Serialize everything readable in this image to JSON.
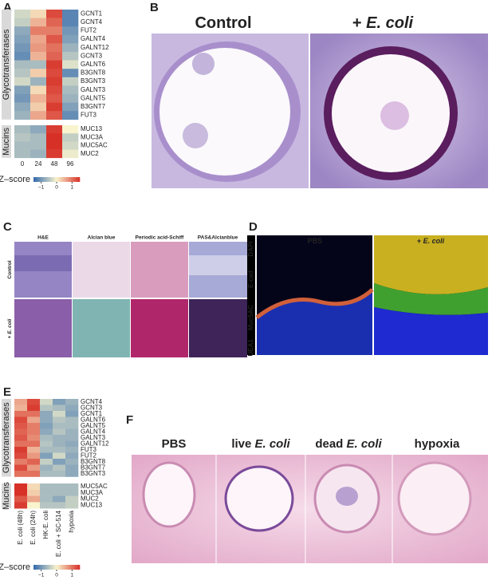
{
  "panels": {
    "A": {
      "label": "A",
      "columns": [
        "0",
        "24",
        "48",
        "96"
      ],
      "groups": [
        {
          "name": "Glycotransferases",
          "rows": [
            "GCNT1",
            "GCNT4",
            "FUT2",
            "GALNT4",
            "GALNT12",
            "GCNT3",
            "GALNT6",
            "B3GNT8",
            "B3GNT3",
            "GALNT3",
            "GALNT5",
            "B3GNT7",
            "FUT3"
          ],
          "values": [
            [
              -0.3,
              0.2,
              1.3,
              -1.2
            ],
            [
              -0.4,
              0.5,
              1.1,
              -1.2
            ],
            [
              -0.8,
              0.9,
              0.9,
              -1.0
            ],
            [
              -0.9,
              0.6,
              1.2,
              -0.9
            ],
            [
              -1.0,
              0.7,
              1.0,
              -0.7
            ],
            [
              -1.1,
              0.5,
              1.1,
              -0.5
            ],
            [
              -0.6,
              -0.6,
              1.4,
              -0.2
            ],
            [
              -0.5,
              0.3,
              1.3,
              -1.1
            ],
            [
              -0.3,
              -0.7,
              1.4,
              -0.4
            ],
            [
              -0.9,
              0.2,
              1.3,
              -0.6
            ],
            [
              -1.0,
              0.5,
              1.2,
              -0.7
            ],
            [
              -0.8,
              0.3,
              1.4,
              -0.9
            ],
            [
              -0.7,
              0.6,
              1.2,
              -1.1
            ]
          ]
        },
        {
          "name": "Mucins",
          "rows": [
            "MUC13",
            "MUC3A",
            "MUC5AC",
            "MUC2"
          ],
          "values": [
            [
              -0.6,
              -0.8,
              1.4,
              0.0
            ],
            [
              -0.5,
              -0.6,
              1.5,
              -0.4
            ],
            [
              -0.6,
              -0.6,
              1.5,
              -0.3
            ],
            [
              -0.6,
              -0.7,
              1.4,
              -0.1
            ]
          ]
        }
      ],
      "colorbar": {
        "title": "Z–score",
        "lim": [
          -1.5,
          1.5
        ],
        "ticks": [
          {
            "value": -1,
            "label": "−1"
          },
          0,
          1
        ]
      }
    },
    "B": {
      "label": "B",
      "titles": [
        [
          "Control"
        ],
        [
          "+ ",
          "E. coli"
        ]
      ]
    },
    "C": {
      "label": "C",
      "columns": [
        "H&E",
        "Alcian blue",
        "Periodic acid-Schiff",
        "PAS&Alcianblue"
      ],
      "rows": [
        [
          "Control"
        ],
        [
          "+ ",
          "E. coli"
        ]
      ]
    },
    "D": {
      "label": "D",
      "titles": [
        [
          "PBS"
        ],
        [
          "+ ",
          "E. coli"
        ]
      ],
      "channels": [
        "UEA1",
        "Muc5AC",
        "E-cad",
        "DAPI"
      ]
    },
    "E": {
      "label": "E",
      "columns": [
        "E. coli (48h)",
        "E. coli (24h)",
        "HK-E. coli",
        "E. coli + SC-514",
        "hypoxia"
      ],
      "groups": [
        {
          "name": "Glycotransferases",
          "rows": [
            "GCNT4",
            "GCNT3",
            "GCNT1",
            "GALNT6",
            "GALNT5",
            "GALNT4",
            "GALNT3",
            "GALNT12",
            "FUT3",
            "FUT2",
            "B3GNT8",
            "B3GNT7",
            "B3GNT3"
          ],
          "values": [
            [
              0.6,
              1.3,
              -0.3,
              -0.9,
              -0.7
            ],
            [
              0.5,
              1.4,
              -0.5,
              -0.6,
              -0.8
            ],
            [
              1.0,
              1.0,
              -0.8,
              -0.3,
              -0.9
            ],
            [
              1.3,
              0.6,
              -0.8,
              -0.5,
              -0.6
            ],
            [
              1.2,
              0.9,
              -0.9,
              -0.6,
              -0.6
            ],
            [
              1.1,
              0.9,
              -0.8,
              -0.5,
              -0.7
            ],
            [
              1.2,
              0.8,
              -0.6,
              -0.7,
              -0.7
            ],
            [
              1.0,
              1.0,
              -0.5,
              -0.7,
              -0.8
            ],
            [
              1.4,
              0.5,
              -0.6,
              -0.6,
              -0.7
            ],
            [
              1.3,
              0.7,
              -0.9,
              -0.3,
              -0.8
            ],
            [
              0.9,
              1.1,
              -0.4,
              -0.9,
              -0.7
            ],
            [
              1.3,
              0.7,
              -0.7,
              -0.5,
              -0.8
            ],
            [
              1.0,
              1.0,
              -0.6,
              -0.6,
              -0.8
            ]
          ]
        },
        {
          "name": "Mucins",
          "rows": [
            "MUC5AC",
            "MUC3A",
            "MUC2",
            "MUC13"
          ],
          "values": [
            [
              1.6,
              0.2,
              -0.6,
              -0.6,
              -0.6
            ],
            [
              1.5,
              0.3,
              -0.6,
              -0.6,
              -0.6
            ],
            [
              1.2,
              0.6,
              -0.6,
              -0.8,
              -0.4
            ],
            [
              1.4,
              0.0,
              -0.5,
              -0.5,
              -0.4
            ]
          ]
        }
      ],
      "colorbar": {
        "title": "Z–score",
        "lim": [
          -1.5,
          1.5
        ],
        "ticks": [
          {
            "value": -1,
            "label": "−1"
          },
          0,
          1
        ]
      }
    },
    "F": {
      "label": "F",
      "titles": [
        [
          "PBS"
        ],
        [
          "live ",
          "E. coli"
        ],
        [
          "dead ",
          "E. coli"
        ],
        [
          "hypoxia"
        ]
      ]
    }
  }
}
